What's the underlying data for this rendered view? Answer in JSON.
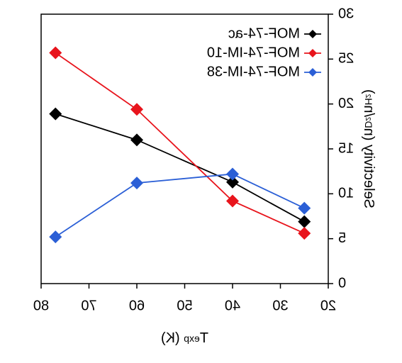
{
  "chart_data": {
    "type": "line",
    "x_label": [
      {
        "text": "T"
      },
      {
        "text": "exp",
        "sub": true
      },
      {
        "text": " (K)"
      }
    ],
    "y_label": [
      {
        "text": "Selectivity (n"
      },
      {
        "text": "D",
        "sub": true
      },
      {
        "text": "2",
        "sub2": true
      },
      {
        "text": "/n"
      },
      {
        "text": "H",
        "sub": true
      },
      {
        "text": "2",
        "sub2": true
      },
      {
        "text": ")"
      }
    ],
    "x": [
      77,
      60,
      40,
      25
    ],
    "series": [
      {
        "name": "MOF-74-ac",
        "color": "#000000",
        "values": [
          18.9,
          16.0,
          11.3,
          6.9
        ]
      },
      {
        "name": "MOF-74-IM-10",
        "color": "#e8141c",
        "values": [
          25.7,
          19.4,
          9.2,
          5.6
        ]
      },
      {
        "name": "MOF-74-IM-38",
        "color": "#2b5fd6",
        "values": [
          5.2,
          11.2,
          12.2,
          8.4
        ]
      }
    ],
    "xlim": [
      20,
      80
    ],
    "xticks": [
      20,
      30,
      40,
      50,
      60,
      70,
      80
    ],
    "ylim": [
      0,
      30
    ],
    "yticks": [
      0,
      5,
      10,
      15,
      20,
      25,
      30
    ],
    "legend": "upper left",
    "mirrored": true
  }
}
